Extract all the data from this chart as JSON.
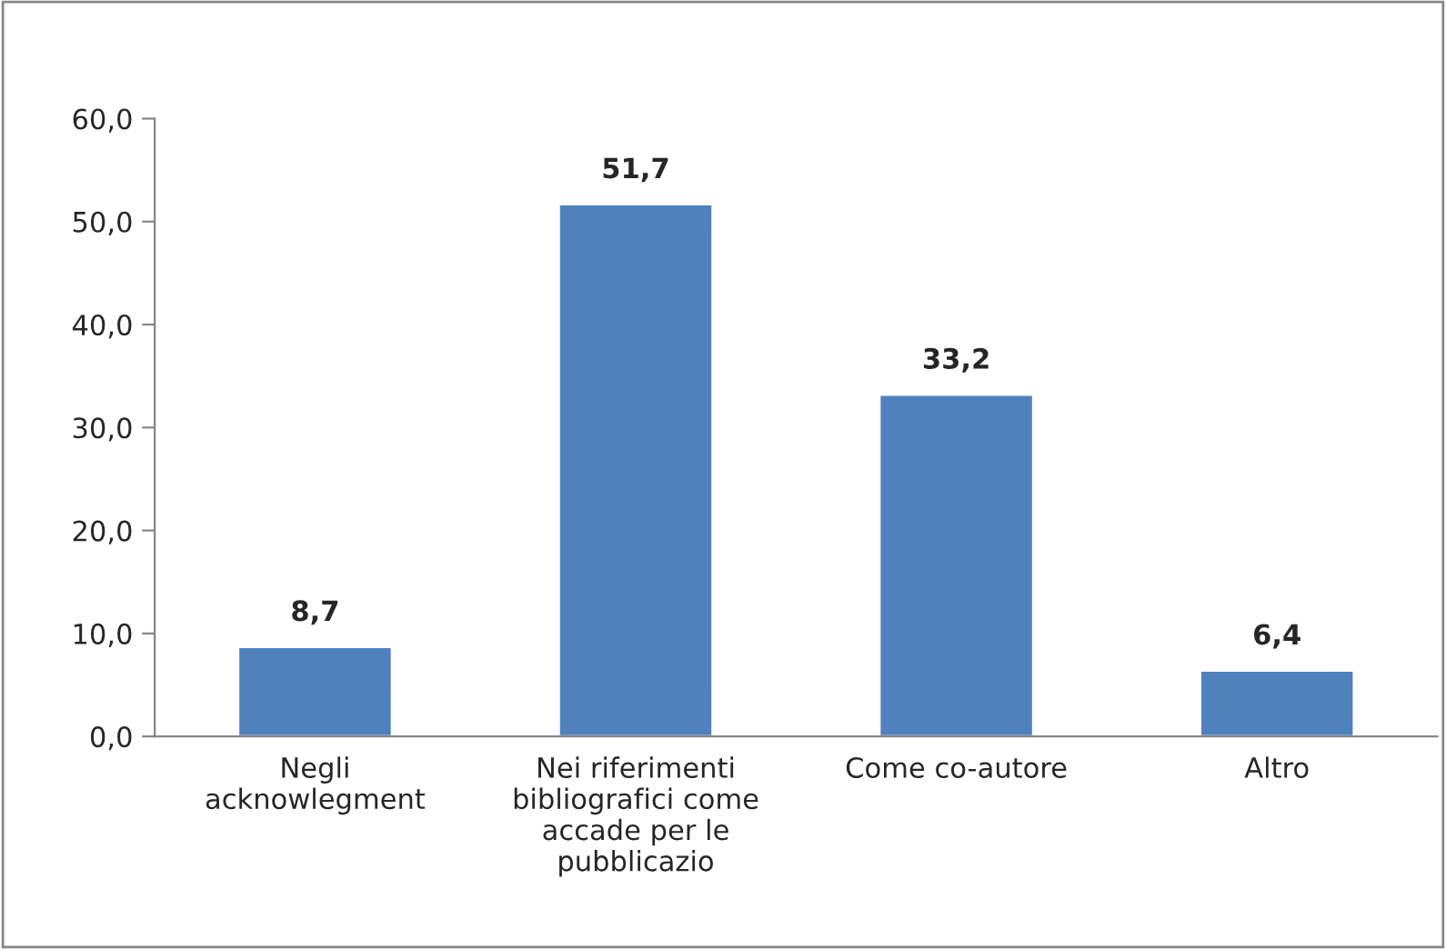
{
  "chart_data": {
    "type": "bar",
    "categories": [
      "Negli\nacknowlegment",
      "Nei riferimenti\nbibliografici come\naccade per le\npubblicazio",
      "Come co-autore",
      "Altro"
    ],
    "values": [
      8.7,
      51.7,
      33.2,
      6.4
    ],
    "value_labels": [
      "8,7",
      "51,7",
      "33,2",
      "6,4"
    ],
    "color": "#4f81bd",
    "ylim": [
      0,
      60
    ],
    "yticks": [
      {
        "value": 0,
        "label": "0,0"
      },
      {
        "value": 10,
        "label": "10,0"
      },
      {
        "value": 20,
        "label": "20,0"
      },
      {
        "value": 30,
        "label": "30,0"
      },
      {
        "value": 40,
        "label": "40,0"
      },
      {
        "value": 50,
        "label": "50,0"
      },
      {
        "value": 60,
        "label": "60,0"
      }
    ],
    "grid": false,
    "legend": false
  }
}
